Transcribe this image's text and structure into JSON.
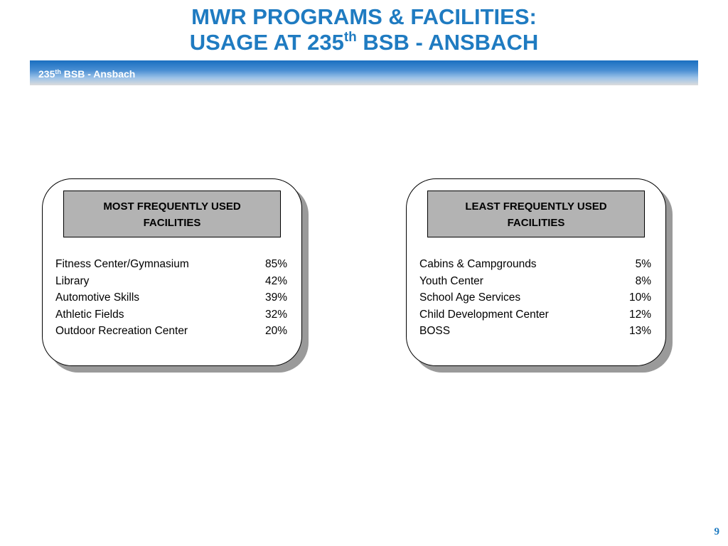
{
  "title": {
    "line1": "MWR PROGRAMS & FACILITIES:",
    "line2_prefix": "USAGE AT 235",
    "line2_sup": "th",
    "line2_suffix": " BSB - ANSBACH"
  },
  "banner": {
    "prefix": "235",
    "sup": "th",
    "suffix": " BSB - Ansbach",
    "accent_color": "#1a6fc0"
  },
  "most_used": {
    "header_line1": "MOST FREQUENTLY USED",
    "header_line2": "FACILITIES",
    "items": [
      {
        "name": "Fitness Center/Gymnasium",
        "value": "85%"
      },
      {
        "name": "Library",
        "value": "42%"
      },
      {
        "name": "Automotive Skills",
        "value": "39%"
      },
      {
        "name": "Athletic Fields",
        "value": "32%"
      },
      {
        "name": "Outdoor Recreation Center",
        "value": "20%"
      }
    ]
  },
  "least_used": {
    "header_line1": "LEAST FREQUENTLY USED",
    "header_line2": "FACILITIES",
    "items": [
      {
        "name": "Cabins & Campgrounds",
        "value": "5%"
      },
      {
        "name": "Youth Center",
        "value": "8%"
      },
      {
        "name": "School Age Services",
        "value": "10%"
      },
      {
        "name": "Child Development Center",
        "value": "12%"
      },
      {
        "name": "BOSS",
        "value": "13%"
      }
    ]
  },
  "page_number": "9",
  "colors": {
    "title": "#1f7bc1",
    "header_fill": "#b3b3b3",
    "shadow": "#9a9a9a"
  }
}
